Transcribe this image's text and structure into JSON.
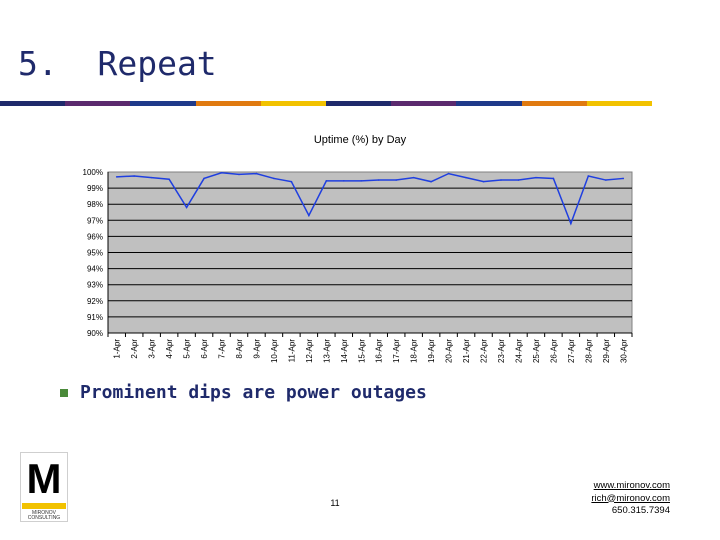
{
  "slide": {
    "title": "5.  Repeat",
    "title_bar_colors": [
      "#1f2a6b",
      "#5b2a6e",
      "#1f3a8a",
      "#e07a10",
      "#f2c200",
      "#1f2a6b",
      "#5b2a6e",
      "#1f3a8a",
      "#e07a10",
      "#f2c200"
    ],
    "bullet": "Prominent dips are power outages",
    "page_number": "11",
    "contact": {
      "website": "www.mironov.com",
      "email": "rich@mironov.com",
      "phone": "650.315.7394"
    },
    "logo": {
      "letter": "M",
      "line1": "MIRONOV",
      "line2": "CONSULTING"
    }
  },
  "chart_data": {
    "type": "line",
    "title": "Uptime (%) by Day",
    "xlabel": "",
    "ylabel": "",
    "categories": [
      "1-Apr",
      "2-Apr",
      "3-Apr",
      "4-Apr",
      "5-Apr",
      "6-Apr",
      "7-Apr",
      "8-Apr",
      "9-Apr",
      "10-Apr",
      "11-Apr",
      "12-Apr",
      "13-Apr",
      "14-Apr",
      "15-Apr",
      "16-Apr",
      "17-Apr",
      "18-Apr",
      "19-Apr",
      "20-Apr",
      "21-Apr",
      "22-Apr",
      "23-Apr",
      "24-Apr",
      "25-Apr",
      "26-Apr",
      "27-Apr",
      "28-Apr",
      "29-Apr",
      "30-Apr"
    ],
    "values": [
      99.7,
      99.75,
      99.65,
      99.55,
      97.8,
      99.6,
      99.95,
      99.85,
      99.9,
      99.6,
      99.4,
      97.3,
      99.45,
      99.45,
      99.45,
      99.5,
      99.5,
      99.65,
      99.4,
      99.9,
      99.65,
      99.4,
      99.5,
      99.5,
      99.65,
      99.6,
      96.8,
      99.75,
      99.5,
      99.6
    ],
    "yticks": [
      "90%",
      "91%",
      "92%",
      "93%",
      "94%",
      "95%",
      "96%",
      "97%",
      "98%",
      "99%",
      "100%"
    ],
    "ylim": [
      90,
      100
    ],
    "grid": true,
    "colors": {
      "plot_bg": "#c0c0c0",
      "line": "#1f3fe0",
      "grid": "#000000"
    }
  }
}
